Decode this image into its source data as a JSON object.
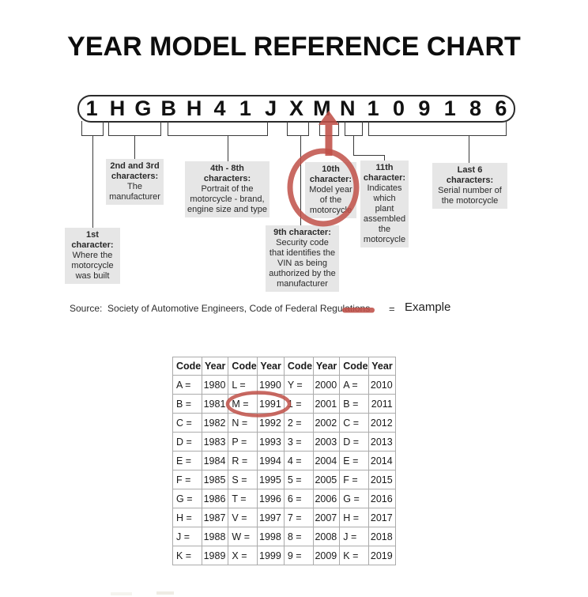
{
  "title": "YEAR MODEL REFERENCE CHART",
  "vin": {
    "characters": [
      "1",
      "H",
      "G",
      "B",
      "H",
      "4",
      "1",
      "J",
      "X",
      "M",
      "N",
      "1",
      "0",
      "9",
      "1",
      "8",
      "6"
    ]
  },
  "callouts": [
    {
      "heading": "1st character:",
      "body": "Where the motorcycle was built"
    },
    {
      "heading": "2nd and 3rd characters:",
      "body": "The manufacturer"
    },
    {
      "heading": "4th - 8th characters:",
      "body": "Portrait of the motorcycle - brand, engine size and type"
    },
    {
      "heading": "9th character:",
      "body": "Security code that identifies the VIN as being authorized by the manufacturer"
    },
    {
      "heading": "10th character:",
      "body": "Model year of the motorcycle"
    },
    {
      "heading": "11th character:",
      "body": "Indicates which plant assembled the motorcycle"
    },
    {
      "heading": "Last 6 characters:",
      "body": "Serial number of the motorcycle"
    }
  ],
  "source_text": "Source:  Society of Automotive Engineers, Code of Federal Regulations",
  "legend": {
    "equals": "=",
    "label": "Example"
  },
  "table": {
    "headers": [
      "Code",
      "Year",
      "Code",
      "Year",
      "Code",
      "Year",
      "Code",
      "Year"
    ],
    "rows": [
      [
        "A =",
        "1980",
        "L =",
        "1990",
        "Y =",
        "2000",
        "A =",
        "2010"
      ],
      [
        "B =",
        "1981",
        "M =",
        "1991",
        "1 =",
        "2001",
        "B =",
        "2011"
      ],
      [
        "C =",
        "1982",
        "N =",
        "1992",
        "2 =",
        "2002",
        "C =",
        "2012"
      ],
      [
        "D =",
        "1983",
        "P =",
        "1993",
        "3 =",
        "2003",
        "D =",
        "2013"
      ],
      [
        "E =",
        "1984",
        "R =",
        "1994",
        "4 =",
        "2004",
        "E =",
        "2014"
      ],
      [
        "F =",
        "1985",
        "S =",
        "1995",
        "5 =",
        "2005",
        "F =",
        "2015"
      ],
      [
        "G =",
        "1986",
        "T =",
        "1996",
        "6 =",
        "2006",
        "G =",
        "2016"
      ],
      [
        "H =",
        "1987",
        "V =",
        "1997",
        "7 =",
        "2007",
        "H =",
        "2017"
      ],
      [
        "J =",
        "1988",
        "W =",
        "1998",
        "8 =",
        "2008",
        "J =",
        "2018"
      ],
      [
        "K =",
        "1989",
        "X =",
        "1999",
        "9 =",
        "2009",
        "K =",
        "2019"
      ]
    ],
    "highlighted_code": "M =",
    "highlighted_year": "1991"
  },
  "colors": {
    "accent_red": "#bf5048",
    "callout_gray": "#e6e6e6"
  }
}
